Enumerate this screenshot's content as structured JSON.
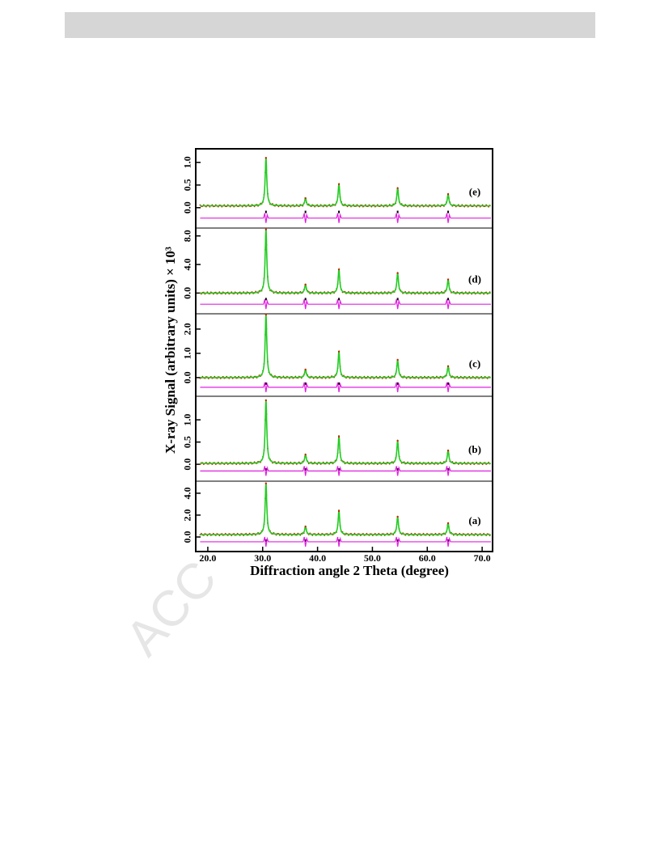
{
  "watermark": "ACC",
  "chart_data": {
    "type": "line",
    "y_label": "X-ray Signal (arbitrary units) × 10³",
    "x_label": "Diffraction angle 2 Theta (degree)",
    "xlim": [
      17.8,
      71.9
    ],
    "xticks": [
      {
        "value": 20,
        "label": "20.0"
      },
      {
        "value": 30,
        "label": "30.0"
      },
      {
        "value": 40,
        "label": "40.0"
      },
      {
        "value": 50,
        "label": "50.0"
      },
      {
        "value": 60,
        "label": "60.0"
      },
      {
        "value": 70,
        "label": "70.0"
      }
    ],
    "x": [
      30.6,
      37.8,
      43.9,
      54.6,
      63.8
    ],
    "observed_color": "#cc2200",
    "calculated_color": "#22cc22",
    "difference_color": "#e020e0",
    "bragg_color": "#000000",
    "panels": [
      {
        "label": "(e)",
        "ylim": [
          -0.45,
          1.3
        ],
        "yticks": [
          {
            "value": 0,
            "label": "0.0"
          },
          {
            "value": 0.5,
            "label": "0.5"
          },
          {
            "value": 1,
            "label": "1.0"
          }
        ],
        "values": [
          1.1,
          0.21,
          0.52,
          0.43,
          0.3
        ],
        "baseline": 0.04,
        "difference_baseline": -0.23
      },
      {
        "label": "(d)",
        "ylim": [
          -2.9,
          9.1
        ],
        "yticks": [
          {
            "value": 0,
            "label": "0.0"
          },
          {
            "value": 4,
            "label": "4.0"
          },
          {
            "value": 8,
            "label": "8.0"
          }
        ],
        "values": [
          8.9,
          1.2,
          3.3,
          2.8,
          1.9
        ],
        "baseline": 0,
        "difference_baseline": -1.56
      },
      {
        "label": "(c)",
        "ylim": [
          -0.77,
          2.63
        ],
        "yticks": [
          {
            "value": 0,
            "label": "0.0"
          },
          {
            "value": 1,
            "label": "1.0"
          },
          {
            "value": 2,
            "label": "2.0"
          }
        ],
        "values": [
          2.6,
          0.33,
          1.07,
          0.73,
          0.47
        ],
        "baseline": 0,
        "difference_baseline": -0.4
      },
      {
        "label": "(b)",
        "ylim": [
          -0.38,
          1.53
        ],
        "yticks": [
          {
            "value": 0,
            "label": "0.0"
          },
          {
            "value": 0.5,
            "label": "0.5"
          },
          {
            "value": 1,
            "label": "1.0"
          }
        ],
        "values": [
          1.44,
          0.22,
          0.62,
          0.53,
          0.31
        ],
        "baseline": 0.02,
        "difference_baseline": -0.15
      },
      {
        "label": "(a)",
        "ylim": [
          -1.33,
          5.1
        ],
        "yticks": [
          {
            "value": 0,
            "label": "0.0"
          },
          {
            "value": 2,
            "label": "2.0"
          },
          {
            "value": 4,
            "label": "4.0"
          }
        ],
        "values": [
          4.9,
          0.96,
          2.37,
          1.85,
          1.26
        ],
        "baseline": 0.22,
        "difference_baseline": -0.44
      }
    ]
  }
}
